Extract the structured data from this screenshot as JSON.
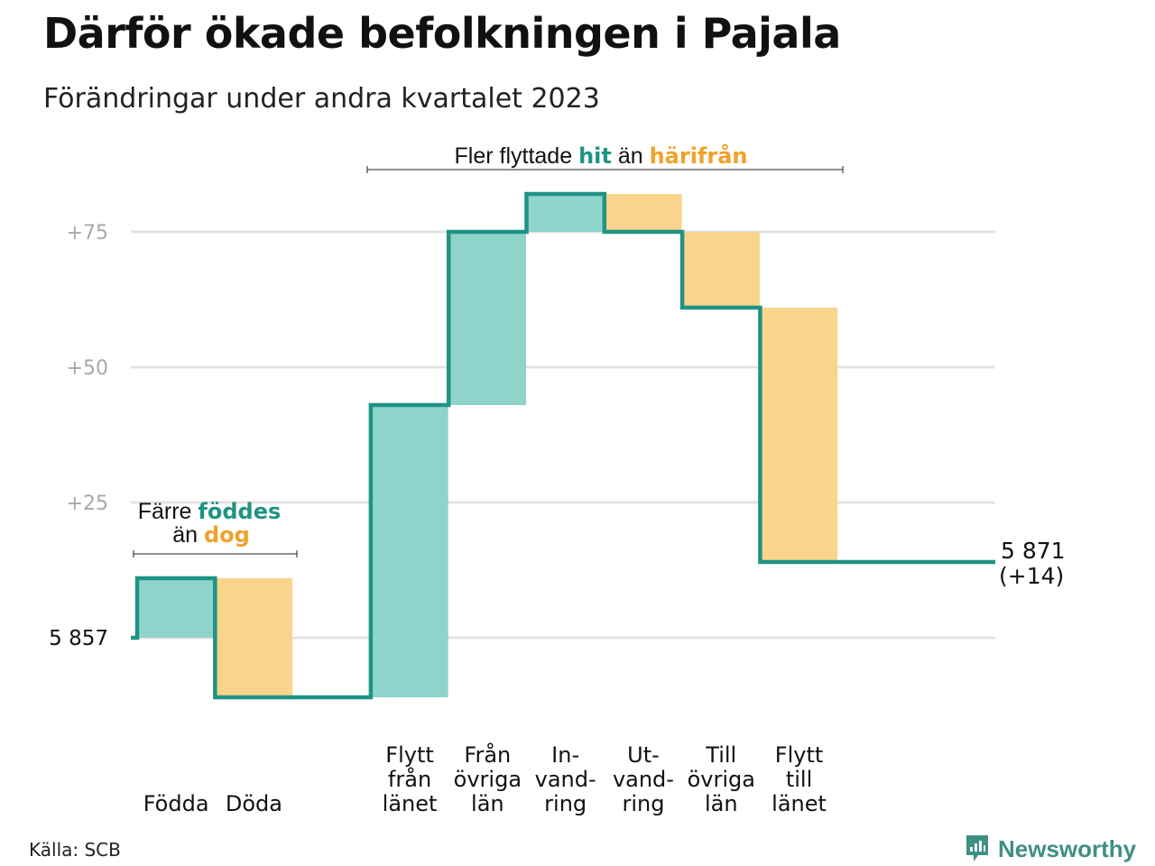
{
  "title": "Därför ökade befolkningen i Pajala",
  "subtitle": "Förändringar under andra kvartalet 2023",
  "source": "Källa: SCB",
  "brand": "Newsworthy",
  "colors": {
    "increase_fill": "#8fd4cb",
    "decrease_fill": "#f9d48c",
    "step_line": "#1f9385",
    "grid": "#e3e3e3",
    "tick_text": "#a8a8a8",
    "accent_green": "#1f9385",
    "accent_orange": "#f0a22a"
  },
  "annotations": {
    "births": {
      "line1_prefix": "Färre ",
      "line1_em": "föddes",
      "line2_prefix": "än ",
      "line2_em": "dog"
    },
    "moves": {
      "prefix": "Fler flyttade ",
      "em1": "hit",
      "mid": " än ",
      "em2": "härifrån"
    }
  },
  "chart_data": {
    "type": "waterfall",
    "baseline": 5857,
    "start_label": "5  857",
    "end_value": 5871,
    "end_label_line1": "5 871",
    "end_label_line2": "(+14)",
    "yticks": [
      {
        "value": 25,
        "label": "+25"
      },
      {
        "value": 50,
        "label": "+50"
      },
      {
        "value": 75,
        "label": "+75"
      }
    ],
    "ylim": [
      -17,
      84
    ],
    "steps": [
      {
        "label": [
          "Födda"
        ],
        "delta": 11
      },
      {
        "label": [
          "Döda"
        ],
        "delta": -22
      },
      {
        "label": [],
        "delta": 0
      },
      {
        "label": [
          "Flytt",
          "från",
          "länet"
        ],
        "delta": 54
      },
      {
        "label": [
          "Från",
          "övriga",
          "län"
        ],
        "delta": 32
      },
      {
        "label": [
          "In-",
          "vand-",
          "ring"
        ],
        "delta": 7
      },
      {
        "label": [
          "Ut-",
          "vand-",
          "ring"
        ],
        "delta": -7
      },
      {
        "label": [
          "Till",
          "övriga",
          "län"
        ],
        "delta": -14
      },
      {
        "label": [
          "Flytt",
          "till",
          "länet"
        ],
        "delta": -47
      }
    ],
    "grid": true
  }
}
